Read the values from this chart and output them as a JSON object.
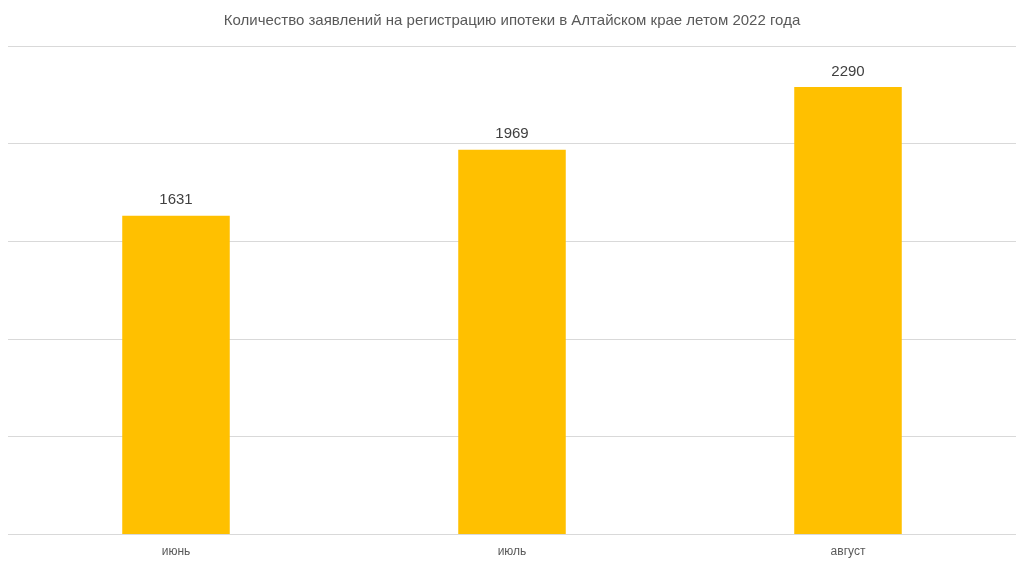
{
  "chart_data": {
    "type": "bar",
    "title": "Количество заявлений на регистрацию ипотеки в Алтайском крае летом 2022 года",
    "categories": [
      "июнь",
      "июль",
      "август"
    ],
    "values": [
      1631,
      1969,
      2290
    ],
    "color": "#ffc000",
    "ylim": [
      0,
      2500
    ],
    "grid": "y",
    "data_labels": true,
    "legend": false,
    "tick_labels": "x"
  }
}
